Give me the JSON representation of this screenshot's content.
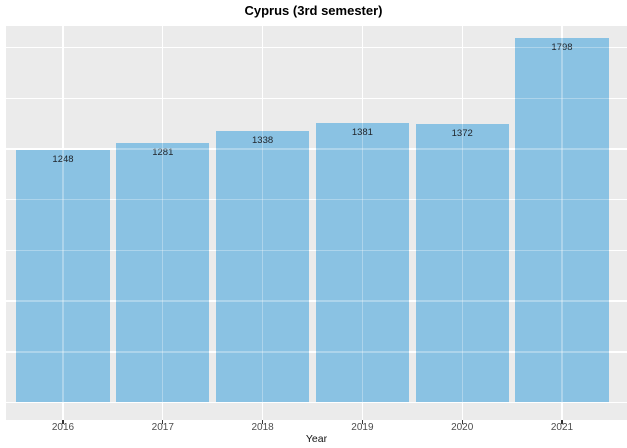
{
  "chart_data": {
    "type": "bar",
    "title": "Cyprus (3rd semester)",
    "xlabel": "Year",
    "ylabel": "",
    "categories": [
      "2016",
      "2017",
      "2018",
      "2019",
      "2020",
      "2021"
    ],
    "values": [
      1248,
      1281,
      1338,
      1381,
      1372,
      1798
    ],
    "bar_labels": [
      "1248",
      "1281",
      "1338",
      "1381",
      "1372",
      "1798"
    ],
    "ylim": [
      0,
      1880
    ],
    "y_major_gridline_step": 250,
    "grid": "major horizontal and vertical, white on gray panel, no y-axis tick labels",
    "legend_position": "none",
    "colors": {
      "bar_fill": "#8AC2E3",
      "panel_background": "#EBEBEB",
      "gridline": "#FFFFFF",
      "axis_text": "#4D4D4D",
      "bar_label_text": "#20242A",
      "title_text": "#000000",
      "figure_background": "#FFFFFF"
    }
  }
}
